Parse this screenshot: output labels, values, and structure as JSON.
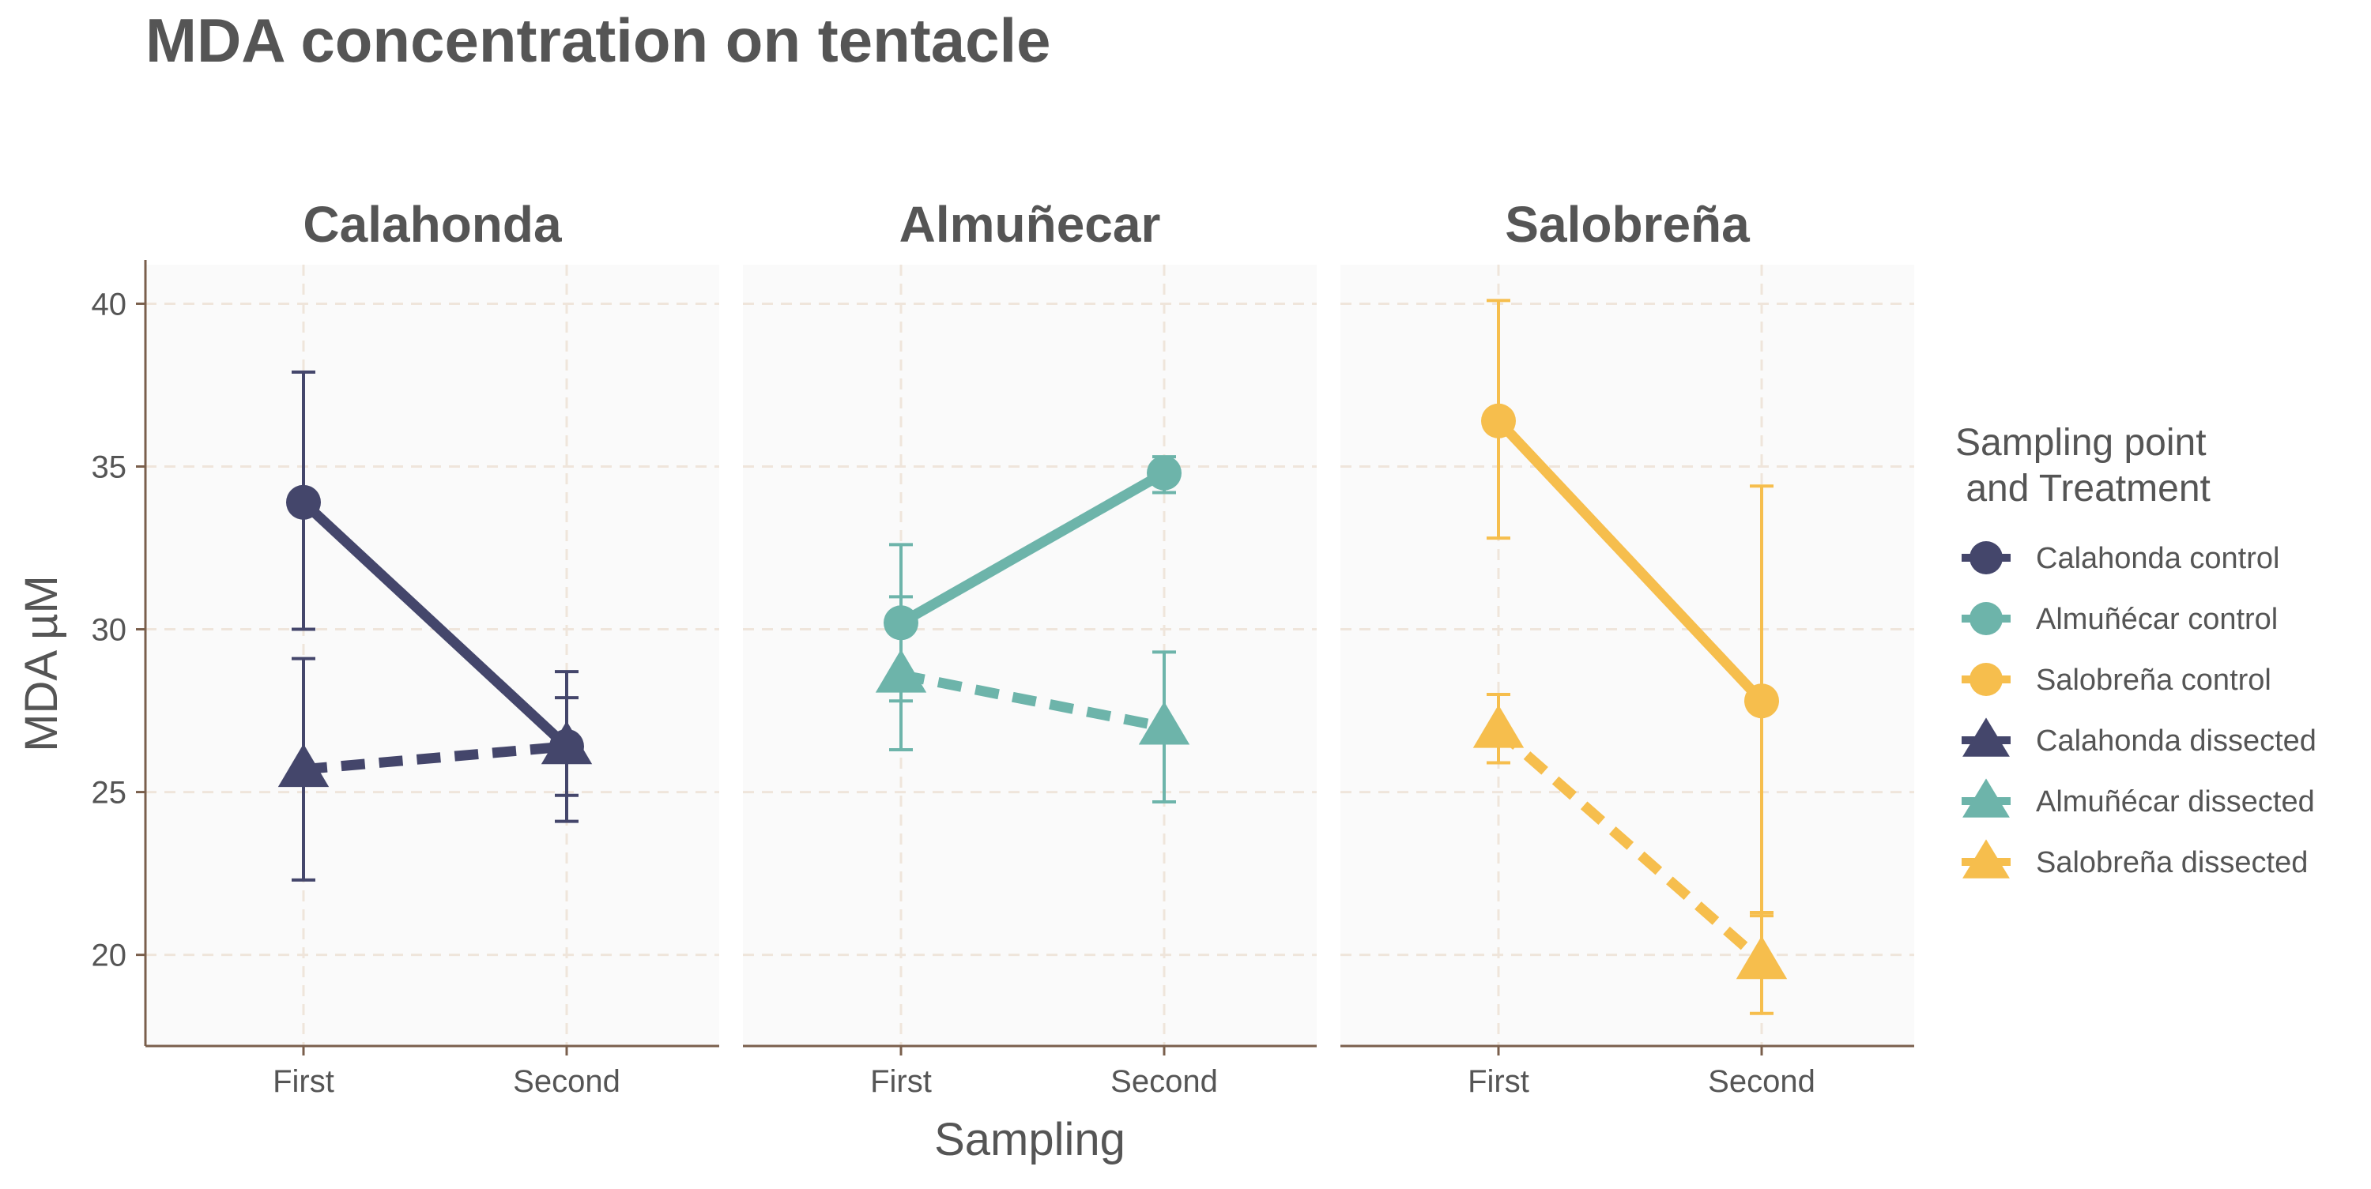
{
  "chart_data": {
    "type": "line",
    "title": "MDA concentration on tentacle",
    "xlabel": "Sampling",
    "ylabel": "MDA µM",
    "categories": [
      "First",
      "Second"
    ],
    "ylim": [
      17.2,
      41.2
    ],
    "yticks": [
      20,
      25,
      30,
      35,
      40
    ],
    "grid": true,
    "legend_position": "right",
    "legend_title": "Sampling point\n and Treatment",
    "facets": [
      {
        "title": "Calahonda",
        "color": "#44466B",
        "series": [
          {
            "name": "Calahonda control",
            "treatment": "control",
            "marker": "circle",
            "line": "solid",
            "values": [
              33.9,
              26.4
            ],
            "err_low": [
              30.0,
              24.9
            ],
            "err_high": [
              37.9,
              27.9
            ]
          },
          {
            "name": "Calahonda dissected",
            "treatment": "dissected",
            "marker": "triangle",
            "line": "dashed",
            "values": [
              25.7,
              26.4
            ],
            "err_low": [
              22.3,
              24.1
            ],
            "err_high": [
              29.1,
              28.7
            ]
          }
        ]
      },
      {
        "title": "Almuñecar",
        "color": "#6DB4AA",
        "series": [
          {
            "name": "Almuñécar control",
            "treatment": "control",
            "marker": "circle",
            "line": "solid",
            "values": [
              30.2,
              34.8
            ],
            "err_low": [
              27.8,
              34.2
            ],
            "err_high": [
              32.6,
              35.3
            ]
          },
          {
            "name": "Almuñécar dissected",
            "treatment": "dissected",
            "marker": "triangle",
            "line": "dashed",
            "values": [
              28.6,
              27.0
            ],
            "err_low": [
              26.3,
              24.7
            ],
            "err_high": [
              31.0,
              29.3
            ]
          }
        ]
      },
      {
        "title": "Salobreña",
        "color": "#F6BE4D",
        "series": [
          {
            "name": "Salobreña control",
            "treatment": "control",
            "marker": "circle",
            "line": "solid",
            "values": [
              36.4,
              27.8
            ],
            "err_low": [
              32.8,
              21.2
            ],
            "err_high": [
              40.1,
              34.4
            ]
          },
          {
            "name": "Salobreña dissected",
            "treatment": "dissected",
            "marker": "triangle",
            "line": "dashed",
            "values": [
              26.9,
              19.8
            ],
            "err_low": [
              25.9,
              18.2
            ],
            "err_high": [
              28.0,
              21.3
            ]
          }
        ]
      }
    ],
    "legend_entries": [
      {
        "label": "Calahonda control",
        "color": "#44466B",
        "marker": "circle"
      },
      {
        "label": "Almuñécar control",
        "color": "#6DB4AA",
        "marker": "circle"
      },
      {
        "label": "Salobreña control",
        "color": "#F6BE4D",
        "marker": "circle"
      },
      {
        "label": "Calahonda dissected",
        "color": "#44466B",
        "marker": "triangle"
      },
      {
        "label": "Almuñécar dissected",
        "color": "#6DB4AA",
        "marker": "triangle"
      },
      {
        "label": "Salobreña dissected",
        "color": "#F6BE4D",
        "marker": "triangle"
      }
    ],
    "colors": {
      "panel_background": "#FAFAFA",
      "grid": "#EFE5DB",
      "axis": "#7A5F4C",
      "text": "#555555"
    }
  }
}
